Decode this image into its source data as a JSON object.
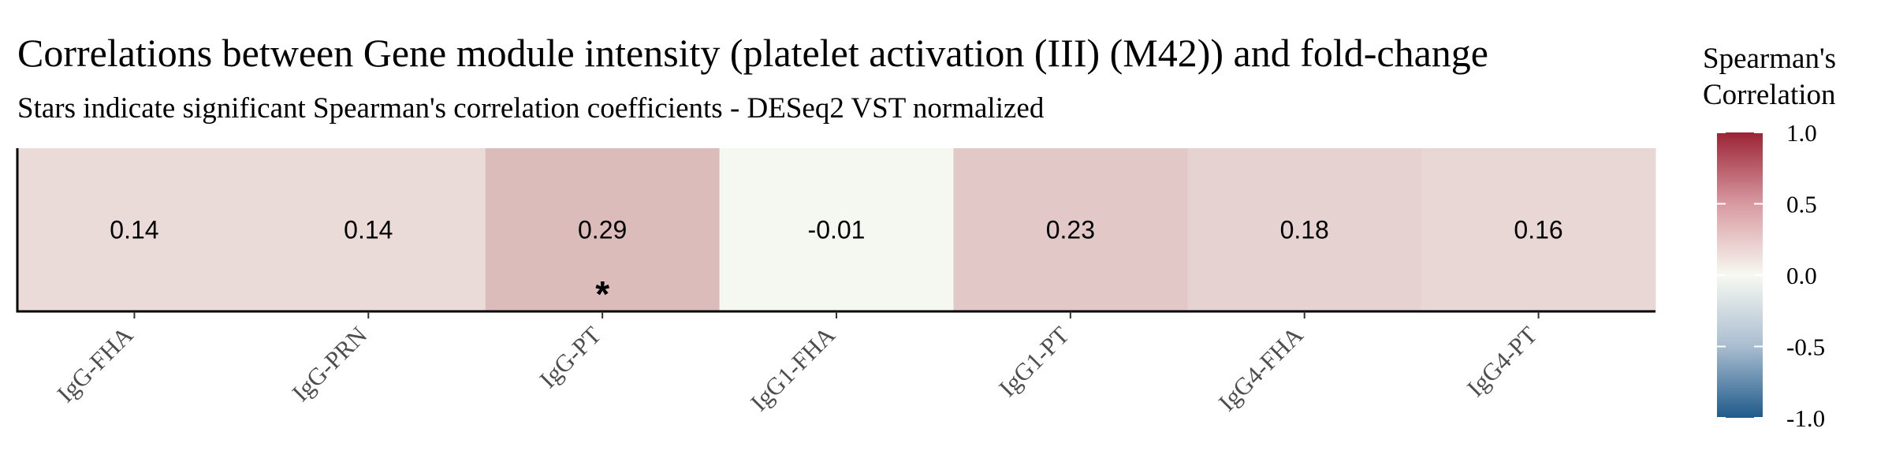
{
  "chart_data": {
    "type": "heatmap",
    "title": "Correlations between Gene module intensity (platelet activation (III) (M42)) and fold-change",
    "subtitle": "Stars indicate significant Spearman's correlation coefficients - DESeq2 VST normalized",
    "categories": [
      "IgG-FHA",
      "IgG-PRN",
      "IgG-PT",
      "IgG1-FHA",
      "IgG1-PT",
      "IgG4-FHA",
      "IgG4-PT"
    ],
    "values": [
      0.14,
      0.14,
      0.29,
      -0.01,
      0.23,
      0.18,
      0.16
    ],
    "value_labels": [
      "0.14",
      "0.14",
      "0.29",
      "-0.01",
      "0.23",
      "0.18",
      "0.16"
    ],
    "significant": [
      false,
      false,
      true,
      false,
      false,
      false,
      false
    ],
    "star_symbol": "*",
    "legend": {
      "title": "Spearman's Correlation",
      "title_lines": [
        "Spearman's",
        "Correlation"
      ],
      "range": [
        -1.0,
        1.0
      ],
      "ticks": [
        1.0,
        0.5,
        0.0,
        -0.5,
        -1.0
      ],
      "tick_labels": [
        "1.0",
        "0.5",
        "0.0",
        "-0.5",
        "-1.0"
      ],
      "colors": {
        "low": "#1f5a8b",
        "mid": "#f7f9f2",
        "high": "#9b2335"
      },
      "placement": "right"
    }
  }
}
